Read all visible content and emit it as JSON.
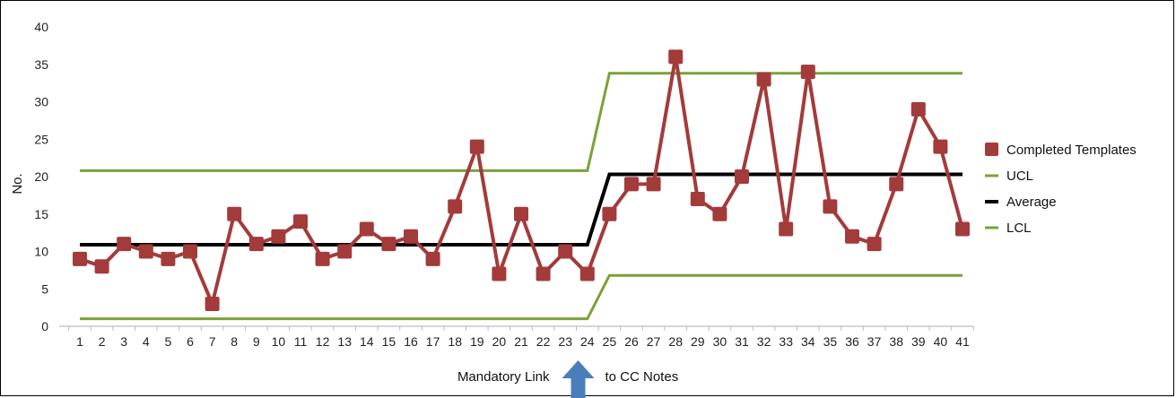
{
  "chart_data": {
    "type": "line",
    "title": "",
    "xlabel": "",
    "ylabel": "No.",
    "ylim": [
      0,
      40
    ],
    "yticks": [
      0,
      5,
      10,
      15,
      20,
      25,
      30,
      35,
      40
    ],
    "x": [
      1,
      2,
      3,
      4,
      5,
      6,
      7,
      8,
      9,
      10,
      11,
      12,
      13,
      14,
      15,
      16,
      17,
      18,
      19,
      20,
      21,
      22,
      23,
      24,
      25,
      26,
      27,
      28,
      29,
      30,
      31,
      32,
      33,
      34,
      35,
      36,
      37,
      38,
      39,
      40,
      41
    ],
    "grid": false,
    "legend_position": "right",
    "series": [
      {
        "name": "Completed Templates",
        "color": "#a33b3b",
        "marker": "square",
        "values": [
          9,
          8,
          11,
          10,
          9,
          10,
          3,
          15,
          11,
          12,
          14,
          9,
          10,
          13,
          11,
          12,
          9,
          16,
          24,
          7,
          15,
          7,
          10,
          7,
          15,
          19,
          19,
          36,
          17,
          15,
          20,
          33,
          13,
          34,
          16,
          12,
          11,
          19,
          29,
          24,
          13
        ]
      },
      {
        "name": "UCL",
        "color": "#7ba13a",
        "points": [
          [
            1,
            20.8
          ],
          [
            24,
            20.8
          ],
          [
            25,
            33.8
          ],
          [
            41,
            33.8
          ]
        ]
      },
      {
        "name": "Average",
        "color": "#000000",
        "points": [
          [
            1,
            10.9
          ],
          [
            24,
            10.9
          ],
          [
            25,
            20.3
          ],
          [
            41,
            20.3
          ]
        ]
      },
      {
        "name": "LCL",
        "color": "#7ba13a",
        "points": [
          [
            1,
            1
          ],
          [
            24,
            1
          ],
          [
            25,
            6.8
          ],
          [
            41,
            6.8
          ]
        ]
      }
    ],
    "annotation": {
      "left_text": "Mandatory Link",
      "right_text": "to CC Notes",
      "arrow_color": "#4a7ebb",
      "at_x": 23.5
    }
  }
}
